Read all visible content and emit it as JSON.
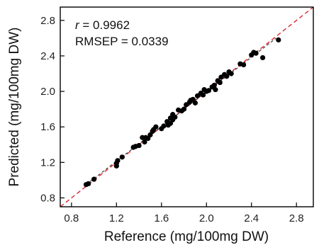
{
  "chart_data": {
    "type": "scatter",
    "xlabel": "Reference (mg/100mg DW)",
    "ylabel": "Predicted (mg/100mg DW)",
    "xlim": [
      0.7,
      2.95
    ],
    "ylim": [
      0.7,
      2.95
    ],
    "xticks": [
      0.8,
      1.2,
      1.6,
      2.0,
      2.4,
      2.8
    ],
    "yticks": [
      0.8,
      1.2,
      1.6,
      2.0,
      2.4,
      2.8
    ],
    "xtick_labels": [
      "0.8",
      "1.2",
      "1.6",
      "2.0",
      "2.4",
      "2.8"
    ],
    "ytick_labels": [
      "0.8",
      "1.2",
      "1.6",
      "2.0",
      "2.4",
      "2.8"
    ],
    "grid": false,
    "annotations": {
      "r_symbol": "r",
      "r_text": " = 0.9962",
      "rmsep_text": "RMSEP = 0.0339"
    },
    "reference_line": {
      "style": "dashed",
      "color": "#e0262c",
      "slope": 1,
      "intercept": 0
    },
    "fit_line": {
      "style": "dashed",
      "color": "#222222",
      "from": [
        0.93,
        0.95
      ],
      "to": [
        2.62,
        2.6
      ]
    },
    "point_color": "#000000",
    "points": [
      [
        0.93,
        0.95
      ],
      [
        0.95,
        0.96
      ],
      [
        1.0,
        1.01
      ],
      [
        1.2,
        1.16
      ],
      [
        1.2,
        1.19
      ],
      [
        1.21,
        1.22
      ],
      [
        1.25,
        1.26
      ],
      [
        1.35,
        1.37
      ],
      [
        1.37,
        1.38
      ],
      [
        1.4,
        1.39
      ],
      [
        1.43,
        1.48
      ],
      [
        1.45,
        1.43
      ],
      [
        1.46,
        1.48
      ],
      [
        1.48,
        1.47
      ],
      [
        1.5,
        1.51
      ],
      [
        1.52,
        1.55
      ],
      [
        1.53,
        1.57
      ],
      [
        1.55,
        1.6
      ],
      [
        1.6,
        1.58
      ],
      [
        1.62,
        1.61
      ],
      [
        1.65,
        1.66
      ],
      [
        1.66,
        1.62
      ],
      [
        1.68,
        1.64
      ],
      [
        1.68,
        1.7
      ],
      [
        1.7,
        1.68
      ],
      [
        1.7,
        1.74
      ],
      [
        1.72,
        1.71
      ],
      [
        1.75,
        1.79
      ],
      [
        1.78,
        1.78
      ],
      [
        1.8,
        1.8
      ],
      [
        1.82,
        1.85
      ],
      [
        1.85,
        1.88
      ],
      [
        1.86,
        1.9
      ],
      [
        1.88,
        1.91
      ],
      [
        1.9,
        1.87
      ],
      [
        1.92,
        1.95
      ],
      [
        1.95,
        1.98
      ],
      [
        1.97,
        1.96
      ],
      [
        1.98,
        2.02
      ],
      [
        2.0,
        2.0
      ],
      [
        2.02,
        2.01
      ],
      [
        2.05,
        2.05
      ],
      [
        2.07,
        2.07
      ],
      [
        2.08,
        2.02
      ],
      [
        2.1,
        2.12
      ],
      [
        2.12,
        2.1
      ],
      [
        2.13,
        2.16
      ],
      [
        2.16,
        2.19
      ],
      [
        2.18,
        2.17
      ],
      [
        2.2,
        2.22
      ],
      [
        2.22,
        2.2
      ],
      [
        2.3,
        2.31
      ],
      [
        2.33,
        2.3
      ],
      [
        2.4,
        2.41
      ],
      [
        2.42,
        2.44
      ],
      [
        2.44,
        2.43
      ],
      [
        2.5,
        2.38
      ],
      [
        2.64,
        2.58
      ]
    ]
  }
}
